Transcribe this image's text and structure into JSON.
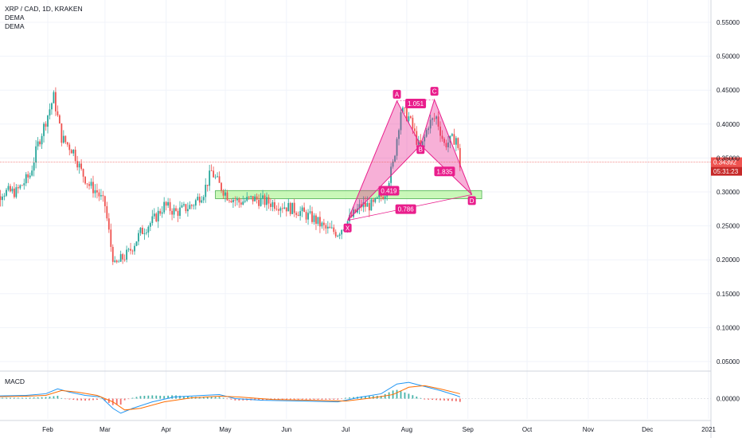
{
  "header": {
    "symbol_line": "XRP / CAD, 1D, KRAKEN",
    "indicators": [
      "DEMA",
      "DEMA"
    ]
  },
  "macd_label": "MACD",
  "chart_data": {
    "type": "candlestick",
    "title": "XRP / CAD, 1D, KRAKEN",
    "y_axis": {
      "ticks": [
        "0.55000",
        "0.50000",
        "0.45000",
        "0.40000",
        "0.35000",
        "0.30000",
        "0.25000",
        "0.20000",
        "0.15000",
        "0.10000",
        "0.05000"
      ],
      "tick_values": [
        0.55,
        0.5,
        0.45,
        0.4,
        0.35,
        0.3,
        0.25,
        0.2,
        0.15,
        0.1,
        0.05
      ],
      "range": [
        0.035,
        0.57
      ]
    },
    "x_axis": {
      "labels": [
        "Feb",
        "Mar",
        "Apr",
        "May",
        "Jun",
        "Jul",
        "Aug",
        "Sep",
        "Oct",
        "Nov",
        "Dec",
        "2021"
      ],
      "day_index": [
        31,
        60,
        91,
        121,
        152,
        182,
        213,
        244,
        274,
        305,
        335,
        366
      ],
      "range": [
        0,
        366
      ]
    },
    "price_path": [
      [
        0,
        0.27
      ],
      [
        8,
        0.3
      ],
      [
        15,
        0.3
      ],
      [
        22,
        0.325
      ],
      [
        26,
        0.37
      ],
      [
        34,
        0.44
      ],
      [
        38,
        0.38
      ],
      [
        44,
        0.36
      ],
      [
        48,
        0.33
      ],
      [
        52,
        0.31
      ],
      [
        56,
        0.3
      ],
      [
        60,
        0.28
      ],
      [
        63,
        0.22
      ],
      [
        65,
        0.19
      ],
      [
        68,
        0.2
      ],
      [
        72,
        0.21
      ],
      [
        78,
        0.24
      ],
      [
        85,
        0.26
      ],
      [
        90,
        0.28
      ],
      [
        96,
        0.27
      ],
      [
        104,
        0.28
      ],
      [
        110,
        0.3
      ],
      [
        114,
        0.33
      ],
      [
        118,
        0.31
      ],
      [
        122,
        0.295
      ],
      [
        128,
        0.285
      ],
      [
        135,
        0.29
      ],
      [
        142,
        0.285
      ],
      [
        150,
        0.28
      ],
      [
        158,
        0.272
      ],
      [
        166,
        0.26
      ],
      [
        172,
        0.245
      ],
      [
        178,
        0.24
      ],
      [
        184,
        0.26
      ],
      [
        190,
        0.28
      ],
      [
        196,
        0.28
      ],
      [
        202,
        0.3
      ],
      [
        206,
        0.34
      ],
      [
        210,
        0.42
      ],
      [
        214,
        0.41
      ],
      [
        220,
        0.36
      ],
      [
        224,
        0.4
      ],
      [
        228,
        0.41
      ],
      [
        232,
        0.37
      ],
      [
        238,
        0.38
      ],
      [
        240,
        0.34
      ]
    ],
    "current_price": "0.34392",
    "countdown": "05:31:23",
    "harmonic_pattern": {
      "points": [
        {
          "name": "X",
          "day": 183,
          "price": 0.258
        },
        {
          "name": "A",
          "day": 208,
          "price": 0.434
        },
        {
          "name": "B",
          "day": 220,
          "price": 0.369
        },
        {
          "name": "C",
          "day": 227,
          "price": 0.436
        },
        {
          "name": "D",
          "day": 246,
          "price": 0.296
        }
      ],
      "ratios": [
        "1.051",
        "0.419",
        "1.835",
        "0.786"
      ]
    },
    "support_zone": {
      "price_low": 0.29,
      "price_high": 0.302,
      "day_start": 116,
      "day_end": 251
    },
    "macd": {
      "zero_label": "0.00000",
      "zero_level": 0,
      "range": [
        -0.025,
        0.03
      ],
      "macd_line": [
        [
          0,
          0.003
        ],
        [
          20,
          0.004
        ],
        [
          30,
          0.006
        ],
        [
          36,
          0.012
        ],
        [
          42,
          0.008
        ],
        [
          50,
          0.004
        ],
        [
          58,
          0.002
        ],
        [
          64,
          -0.012
        ],
        [
          68,
          -0.018
        ],
        [
          74,
          -0.012
        ],
        [
          84,
          -0.004
        ],
        [
          95,
          0.002
        ],
        [
          110,
          0.004
        ],
        [
          118,
          0.005
        ],
        [
          126,
          0.0
        ],
        [
          140,
          -0.002
        ],
        [
          160,
          -0.003
        ],
        [
          178,
          -0.004
        ],
        [
          190,
          0.002
        ],
        [
          200,
          0.006
        ],
        [
          208,
          0.018
        ],
        [
          214,
          0.02
        ],
        [
          222,
          0.015
        ],
        [
          230,
          0.01
        ],
        [
          238,
          0.004
        ],
        [
          240,
          0.002
        ]
      ],
      "signal_line": [
        [
          0,
          0.002
        ],
        [
          20,
          0.003
        ],
        [
          30,
          0.004
        ],
        [
          38,
          0.01
        ],
        [
          46,
          0.008
        ],
        [
          56,
          0.004
        ],
        [
          64,
          -0.004
        ],
        [
          70,
          -0.014
        ],
        [
          78,
          -0.012
        ],
        [
          90,
          -0.004
        ],
        [
          104,
          0.001
        ],
        [
          118,
          0.003
        ],
        [
          128,
          0.002
        ],
        [
          145,
          -0.001
        ],
        [
          165,
          -0.002
        ],
        [
          182,
          -0.003
        ],
        [
          196,
          0.001
        ],
        [
          206,
          0.005
        ],
        [
          214,
          0.014
        ],
        [
          222,
          0.016
        ],
        [
          230,
          0.012
        ],
        [
          240,
          0.006
        ]
      ]
    },
    "colors": {
      "up": "#26a69a",
      "down": "#ef5350",
      "pattern": "#e91e8c",
      "zone": "#b7f5a0",
      "macd": "#2196f3",
      "signal": "#ff6d00"
    }
  }
}
